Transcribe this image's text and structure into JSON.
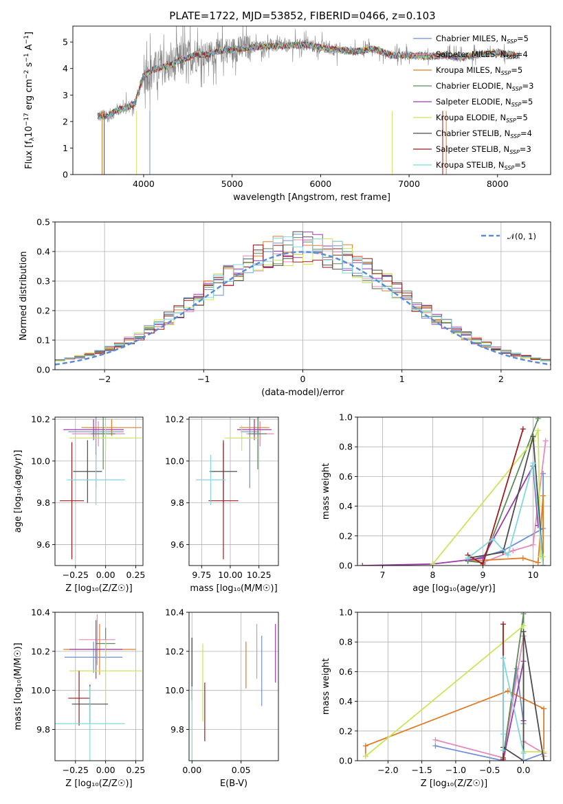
{
  "figure": {
    "title": "PLATE=1722, MJD=53852, FIBERID=0466, z=0.103"
  },
  "models": [
    {
      "name": "Chabrier MILES",
      "nssp": "5",
      "color": "#6f8fd6"
    },
    {
      "name": "Salpeter MILES",
      "nssp": "4",
      "color": "#e68ab8"
    },
    {
      "name": "Kroupa MILES",
      "nssp": "5",
      "color": "#e07b28"
    },
    {
      "name": "Chabrier ELODIE",
      "nssp": "3",
      "color": "#5b8a5b"
    },
    {
      "name": "Salpeter ELODIE",
      "nssp": "5",
      "color": "#9b3aa8"
    },
    {
      "name": "Kroupa ELODIE",
      "nssp": "5",
      "color": "#c9e55a"
    },
    {
      "name": "Chabrier STELIB",
      "nssp": "4",
      "color": "#4b4b4b"
    },
    {
      "name": "Salpeter STELIB",
      "nssp": "3",
      "color": "#a01a1a"
    },
    {
      "name": "Kroupa STELIB",
      "nssp": "5",
      "color": "#7fd8e0"
    }
  ],
  "chart_data": [
    {
      "id": "spectrum",
      "type": "line",
      "xlabel": "wavelength [Angstrom, rest frame]",
      "ylabel_main": "Flux [f",
      "ylabel_sub": "λ",
      "ylabel_rest": "10",
      "ylabel_exp1": "−17",
      "ylabel_mid": " erg cm",
      "ylabel_exp2": "−2",
      "ylabel_s": " s",
      "ylabel_exp3": "−1",
      "ylabel_end": " A",
      "ylabel_exp4": "−1",
      "ylabel_close": "]",
      "xlim": [
        3200,
        8600
      ],
      "ylim": [
        0,
        5.6
      ],
      "xticks": [
        4000,
        5000,
        6000,
        7000,
        8000
      ],
      "yticks": [
        0,
        1,
        2,
        3,
        4,
        5
      ],
      "continuum": {
        "x": [
          3480,
          3600,
          3700,
          3800,
          3900,
          4000,
          4100,
          4200,
          4300,
          4400,
          4500,
          4600,
          4700,
          4800,
          4900,
          5000,
          5200,
          5400,
          5600,
          5800,
          6000,
          6200,
          6400,
          6600,
          6800,
          7000,
          7200,
          7400,
          7600,
          7800,
          8000,
          8200
        ],
        "y": [
          2.2,
          2.2,
          2.45,
          2.5,
          2.7,
          3.7,
          3.95,
          4.05,
          4.1,
          4.3,
          4.4,
          4.55,
          4.5,
          4.6,
          4.7,
          4.7,
          4.8,
          4.85,
          4.85,
          4.9,
          4.8,
          4.7,
          4.65,
          4.75,
          4.5,
          4.5,
          4.45,
          4.5,
          4.4,
          4.55,
          4.6,
          4.5
        ]
      },
      "data_series_name": "data",
      "legend_position": "upper-right"
    },
    {
      "id": "residuals",
      "type": "histogram",
      "xlabel": "(data-model)/error",
      "ylabel": "Normed distribution",
      "xlim": [
        -2.5,
        2.5
      ],
      "ylim": [
        0,
        0.5
      ],
      "xticks": [
        -2,
        -1,
        0,
        1,
        2
      ],
      "xticklabels": [
        "−2",
        "−1",
        "0",
        "1",
        "2"
      ],
      "yticks": [
        0.0,
        0.1,
        0.2,
        0.3,
        0.4,
        0.5
      ],
      "yticklabels": [
        "0.0",
        "0.1",
        "0.2",
        "0.3",
        "0.4",
        "0.5"
      ],
      "bins": 50,
      "legend_label": "𝒩(0, 1)",
      "gaussian_color": "#5b8ad6"
    },
    {
      "id": "age_vs_Z",
      "type": "errorbar",
      "xlabel": "Z [log₁₀(Z/Z☉)]",
      "ylabel": "age  [log₁₀(age/yr)]",
      "xlim": [
        -0.42,
        0.31
      ],
      "ylim": [
        9.5,
        10.21
      ],
      "xticks": [
        -0.25,
        0.0,
        0.25
      ],
      "xticklabels": [
        "−0.25",
        "0.00",
        "0.25"
      ],
      "yticks": [
        9.6,
        9.8,
        10.0,
        10.2
      ],
      "yticklabels": [
        "9.6",
        "9.8",
        "10.0",
        "10.2"
      ],
      "points": [
        {
          "x": -0.08,
          "y": 10.14,
          "xerr": 0.23,
          "yerr": 0.27
        },
        {
          "x": -0.06,
          "y": 10.13,
          "xerr": 0.22,
          "yerr": 0.06
        },
        {
          "x": 0.05,
          "y": 10.16,
          "xerr": 0.25,
          "yerr": 0.04
        },
        {
          "x": -0.02,
          "y": 10.13,
          "xerr": 0.1,
          "yerr": 0.17
        },
        {
          "x": -0.1,
          "y": 10.15,
          "xerr": 0.25,
          "yerr": 0.05
        },
        {
          "x": 0.0,
          "y": 10.11,
          "xerr": 0.3,
          "yerr": 0.06
        },
        {
          "x": -0.15,
          "y": 9.95,
          "xerr": 0.12,
          "yerr": 0.15
        },
        {
          "x": -0.28,
          "y": 9.81,
          "xerr": 0.1,
          "yerr": 0.28
        },
        {
          "x": -0.08,
          "y": 9.91,
          "xerr": 0.24,
          "yerr": 0.12
        }
      ]
    },
    {
      "id": "age_vs_mass",
      "type": "errorbar",
      "xlabel": "mass [log₁₀(M/M☉)]",
      "ylabel": "",
      "xlim": [
        9.64,
        10.42
      ],
      "ylim": [
        9.5,
        10.21
      ],
      "xticks": [
        9.75,
        10.0,
        10.25
      ],
      "xticklabels": [
        "9.75",
        "10.00",
        "10.25"
      ],
      "yticks": [
        9.6,
        9.8,
        10.0,
        10.2
      ],
      "yticklabels": [
        "9.6",
        "9.8",
        "10.0",
        "10.2"
      ],
      "points": [
        {
          "x": 10.17,
          "y": 10.14,
          "xerr": 0.08,
          "yerr": 0.27
        },
        {
          "x": 10.26,
          "y": 10.13,
          "xerr": 0.12,
          "yerr": 0.06
        },
        {
          "x": 10.21,
          "y": 10.16,
          "xerr": 0.13,
          "yerr": 0.04
        },
        {
          "x": 10.24,
          "y": 10.13,
          "xerr": 0.08,
          "yerr": 0.17
        },
        {
          "x": 10.21,
          "y": 10.15,
          "xerr": 0.15,
          "yerr": 0.05
        },
        {
          "x": 10.1,
          "y": 10.11,
          "xerr": 0.15,
          "yerr": 0.06
        },
        {
          "x": 9.94,
          "y": 9.95,
          "xerr": 0.12,
          "yerr": 0.15
        },
        {
          "x": 9.94,
          "y": 9.81,
          "xerr": 0.13,
          "yerr": 0.28
        },
        {
          "x": 9.83,
          "y": 9.91,
          "xerr": 0.13,
          "yerr": 0.12
        }
      ]
    },
    {
      "id": "massweight_vs_age",
      "type": "line",
      "xlabel": "age  [log₁₀(age/yr)]",
      "ylabel": "mass weight",
      "xlim": [
        6.5,
        10.35
      ],
      "ylim": [
        0,
        1.0
      ],
      "xticks": [
        7,
        8,
        9,
        10
      ],
      "xticklabels": [
        "7",
        "8",
        "9",
        "10"
      ],
      "yticks": [
        0.0,
        0.2,
        0.4,
        0.6,
        0.8,
        1.0
      ],
      "yticklabels": [
        "0.0",
        "0.2",
        "0.4",
        "0.6",
        "0.8",
        "1.0"
      ],
      "series": [
        {
          "x": [
            8.7,
            9.4,
            10.2,
            10.2,
            10.2
          ],
          "y": [
            0.03,
            0.1,
            0.25,
            0.62,
            0.0
          ]
        },
        {
          "x": [
            9.0,
            9.6,
            10.0,
            10.25
          ],
          "y": [
            0.02,
            0.1,
            0.14,
            0.84
          ]
        },
        {
          "x": [
            8.7,
            9.8,
            10.1,
            10.2,
            10.2
          ],
          "y": [
            0.03,
            0.05,
            0.02,
            0.47,
            0.0
          ]
        },
        {
          "x": [
            8.7,
            9.0,
            10.1
          ],
          "y": [
            0.03,
            0.02,
            0.99
          ]
        },
        {
          "x": [
            6.6,
            8.0,
            9.0,
            10.0,
            10.1
          ],
          "y": [
            0.0,
            0.01,
            0.05,
            0.67,
            0.27
          ]
        },
        {
          "x": [
            8.0,
            10.0,
            10.1,
            10.15,
            10.2
          ],
          "y": [
            0.01,
            0.84,
            0.91,
            0.06,
            0.06
          ]
        },
        {
          "x": [
            8.7,
            9.4,
            10.0,
            10.2
          ],
          "y": [
            0.05,
            0.09,
            0.87,
            0.0
          ]
        },
        {
          "x": [
            8.7,
            9.0,
            9.8
          ],
          "y": [
            0.07,
            0.01,
            0.92
          ]
        },
        {
          "x": [
            8.7,
            9.2,
            9.5,
            10.0,
            10.2
          ],
          "y": [
            0.05,
            0.18,
            0.07,
            0.69,
            0.0
          ]
        }
      ]
    },
    {
      "id": "mass_vs_Z",
      "type": "errorbar",
      "xlabel": "Z [log₁₀(Z/Z☉)]",
      "ylabel": "mass [log₁₀(M/M☉)]",
      "xlim": [
        -0.42,
        0.31
      ],
      "ylim": [
        9.64,
        10.4
      ],
      "xticks": [
        -0.25,
        0.0,
        0.25
      ],
      "xticklabels": [
        "−0.25",
        "0.00",
        "0.25"
      ],
      "yticks": [
        9.8,
        10.0,
        10.2,
        10.4
      ],
      "yticklabels": [
        "9.8",
        "10.0",
        "10.2",
        "10.4"
      ],
      "points": [
        {
          "x": -0.1,
          "y": 10.17,
          "xerr": 0.24,
          "yerr": 0.08
        },
        {
          "x": -0.07,
          "y": 10.26,
          "xerr": 0.15,
          "yerr": 0.13
        },
        {
          "x": -0.05,
          "y": 10.21,
          "xerr": 0.3,
          "yerr": 0.13
        },
        {
          "x": 0.0,
          "y": 10.24,
          "xerr": 0.08,
          "yerr": 0.08
        },
        {
          "x": -0.08,
          "y": 10.21,
          "xerr": 0.22,
          "yerr": 0.15
        },
        {
          "x": 0.0,
          "y": 10.1,
          "xerr": 0.3,
          "yerr": 0.16
        },
        {
          "x": -0.13,
          "y": 9.93,
          "xerr": 0.15,
          "yerr": 0.1
        },
        {
          "x": -0.22,
          "y": 9.96,
          "xerr": 0.09,
          "yerr": 0.14
        },
        {
          "x": -0.13,
          "y": 9.83,
          "xerr": 0.29,
          "yerr": 0.19
        }
      ]
    },
    {
      "id": "mass_vs_ebv",
      "type": "errorbar",
      "xlabel": "E(B-V)",
      "ylabel": "",
      "xlim": [
        -0.003,
        0.088
      ],
      "ylim": [
        9.64,
        10.4
      ],
      "xticks": [
        0.0,
        0.05
      ],
      "xticklabels": [
        "0.00",
        "0.05"
      ],
      "yticks": [
        9.8,
        10.0,
        10.2,
        10.4
      ],
      "yticklabels": [
        "9.8",
        "10.0",
        "10.2",
        "10.4"
      ],
      "points": [
        {
          "x": 0.071,
          "y": 10.1,
          "xerr": 0.0,
          "yerr": 0.18
        },
        {
          "x": 0.066,
          "y": 10.2,
          "xerr": 0.0,
          "yerr": 0.14
        },
        {
          "x": 0.055,
          "y": 10.13,
          "xerr": 0.0,
          "yerr": 0.12
        },
        {
          "x": 0.0,
          "y": 10.11,
          "xerr": 0.0,
          "yerr": 0.16
        },
        {
          "x": 0.085,
          "y": 10.19,
          "xerr": 0.0,
          "yerr": 0.15
        },
        {
          "x": 0.011,
          "y": 10.04,
          "xerr": 0.0,
          "yerr": 0.2
        },
        {
          "x": 0.0,
          "y": 10.11,
          "xerr": 0.0,
          "yerr": 0.16
        },
        {
          "x": 0.013,
          "y": 9.89,
          "xerr": 0.0,
          "yerr": 0.15
        },
        {
          "x": 0.0,
          "y": 9.83,
          "xerr": 0.0,
          "yerr": 0.19
        }
      ]
    },
    {
      "id": "massweight_vs_Z",
      "type": "line",
      "xlabel": "Z [log₁₀(Z/Z☉)]",
      "ylabel": "mass weight",
      "xlim": [
        -2.45,
        0.4
      ],
      "ylim": [
        0,
        1.0
      ],
      "xticks": [
        -2.0,
        -1.5,
        -1.0,
        -0.5,
        0.0
      ],
      "xticklabels": [
        "−2.0",
        "−1.5",
        "−1.0",
        "−0.5",
        "0.0"
      ],
      "yticks": [
        0.0,
        0.2,
        0.4,
        0.6,
        0.8,
        1.0
      ],
      "yticklabels": [
        "0.0",
        "0.2",
        "0.4",
        "0.6",
        "0.8",
        "1.0"
      ],
      "series": [
        {
          "x": [
            -1.3,
            -0.3,
            -0.1,
            0.0,
            0.0,
            0.3
          ],
          "y": [
            0.1,
            0.0,
            0.62,
            0.25,
            0.0,
            0.05
          ]
        },
        {
          "x": [
            -1.3,
            -0.3,
            0.0,
            0.0,
            0.3,
            0.3
          ],
          "y": [
            0.14,
            0.02,
            0.84,
            0.13,
            0.05,
            0.03
          ]
        },
        {
          "x": [
            -2.33,
            -2.33,
            -0.23,
            0.3,
            0.3
          ],
          "y": [
            0.03,
            0.1,
            0.47,
            0.35,
            0.0
          ]
        },
        {
          "x": [
            -0.3,
            0.0,
            0.0
          ],
          "y": [
            0.02,
            0.99,
            0.0
          ]
        },
        {
          "x": [
            -0.3,
            0.0,
            0.0,
            0.0
          ],
          "y": [
            0.0,
            0.67,
            0.27,
            0.0
          ]
        },
        {
          "x": [
            -2.33,
            0.0,
            0.0,
            0.3
          ],
          "y": [
            0.03,
            0.91,
            0.06,
            0.06
          ]
        },
        {
          "x": [
            -0.3,
            0.0,
            0.0,
            0.3
          ],
          "y": [
            0.09,
            0.0,
            0.87,
            0.0
          ]
        },
        {
          "x": [
            -0.3,
            -0.3,
            -0.3
          ],
          "y": [
            0.07,
            0.92,
            0.01
          ]
        },
        {
          "x": [
            -0.3,
            -0.3,
            -0.3,
            0.0,
            0.0
          ],
          "y": [
            0.18,
            0.07,
            0.69,
            0.05,
            0.0
          ]
        }
      ]
    }
  ]
}
